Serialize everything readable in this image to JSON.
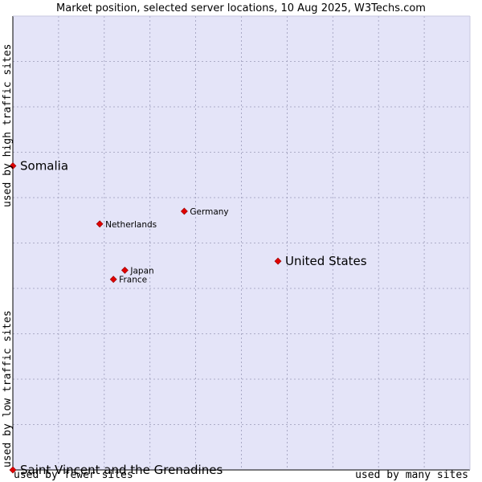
{
  "chart_data": {
    "type": "scatter",
    "title": "Market position, selected server locations, 10 Aug 2025, W3Techs.com",
    "xlabel_low": "used by fewer sites",
    "xlabel_high": "used by many sites",
    "ylabel_low": "used by low traffic sites",
    "ylabel_high": "used by high traffic sites",
    "xlim": [
      0,
      10
    ],
    "ylim": [
      0,
      10
    ],
    "grid": true,
    "points": [
      {
        "label": "Somalia",
        "x": 0.0,
        "y": 6.7,
        "large": true
      },
      {
        "label": "Germany",
        "x": 3.75,
        "y": 5.7,
        "large": false
      },
      {
        "label": "Netherlands",
        "x": 1.9,
        "y": 5.42,
        "large": false
      },
      {
        "label": "United States",
        "x": 5.8,
        "y": 4.6,
        "large": true
      },
      {
        "label": "Japan",
        "x": 2.45,
        "y": 4.4,
        "large": false
      },
      {
        "label": "France",
        "x": 2.2,
        "y": 4.2,
        "large": false
      },
      {
        "label": "Saint Vincent and the Grenadines",
        "x": 0.0,
        "y": 0.0,
        "large": true
      }
    ],
    "colors": {
      "plot_background": "#e4e4f8",
      "grid": "#9a9ab8",
      "marker": "#e00000",
      "frame": "#000000"
    }
  }
}
